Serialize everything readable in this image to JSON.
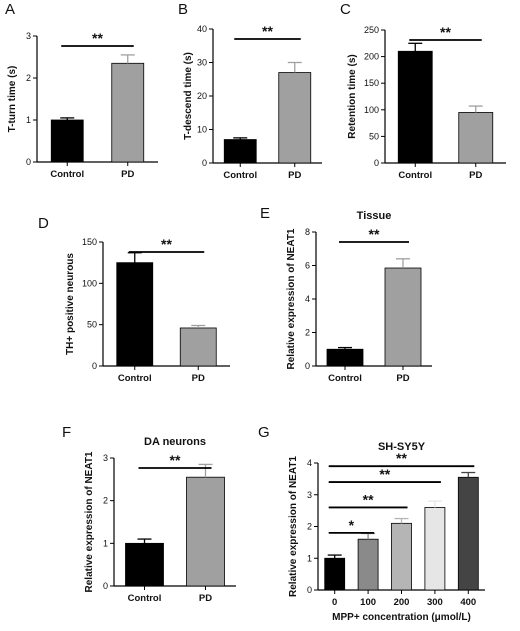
{
  "chart_data": [
    {
      "panel": "A",
      "type": "bar",
      "title": "",
      "ylabel": "T-turn time (s)",
      "xlabel": "",
      "categories": [
        "Control",
        "PD"
      ],
      "values": [
        1.0,
        2.35
      ],
      "errors": [
        0.05,
        0.2
      ],
      "bar_colors": [
        "#000000",
        "#a0a0a0"
      ],
      "ylim": [
        0,
        3
      ],
      "yticks": [
        "0",
        "1",
        "2",
        "3"
      ],
      "significance": [
        {
          "from": 0,
          "to": 1,
          "label": "**"
        }
      ]
    },
    {
      "panel": "B",
      "type": "bar",
      "title": "",
      "ylabel": "T-descend time (s)",
      "xlabel": "",
      "categories": [
        "Control",
        "PD"
      ],
      "values": [
        7.0,
        27.0
      ],
      "errors": [
        0.5,
        3.0
      ],
      "bar_colors": [
        "#000000",
        "#a0a0a0"
      ],
      "ylim": [
        0,
        40
      ],
      "yticks": [
        "0",
        "10",
        "20",
        "30",
        "40"
      ],
      "significance": [
        {
          "from": 0,
          "to": 1,
          "label": "**"
        }
      ]
    },
    {
      "panel": "C",
      "type": "bar",
      "title": "",
      "ylabel": "Retention time (s)",
      "xlabel": "",
      "categories": [
        "Control",
        "PD"
      ],
      "values": [
        210,
        95
      ],
      "errors": [
        15,
        12
      ],
      "bar_colors": [
        "#000000",
        "#a0a0a0"
      ],
      "ylim": [
        0,
        250
      ],
      "yticks": [
        "0",
        "50",
        "100",
        "150",
        "200",
        "250"
      ],
      "significance": [
        {
          "from": 0,
          "to": 1,
          "label": "**"
        }
      ]
    },
    {
      "panel": "D",
      "type": "bar",
      "title": "",
      "ylabel": "TH+ positive neurous",
      "xlabel": "",
      "categories": [
        "Control",
        "PD"
      ],
      "values": [
        125,
        46
      ],
      "errors": [
        12,
        3
      ],
      "bar_colors": [
        "#000000",
        "#a0a0a0"
      ],
      "ylim": [
        0,
        150
      ],
      "yticks": [
        "0",
        "50",
        "100",
        "150"
      ],
      "significance": [
        {
          "from": 0,
          "to": 1,
          "label": "**"
        }
      ]
    },
    {
      "panel": "E",
      "type": "bar",
      "title": "Tissue",
      "ylabel": "Relative expression of NEAT1",
      "xlabel": "",
      "categories": [
        "Control",
        "PD"
      ],
      "values": [
        1.0,
        5.85
      ],
      "errors": [
        0.1,
        0.55
      ],
      "bar_colors": [
        "#000000",
        "#a0a0a0"
      ],
      "ylim": [
        0,
        8
      ],
      "yticks": [
        "0",
        "2",
        "4",
        "6",
        "8"
      ],
      "significance": [
        {
          "from": 0,
          "to": 1,
          "label": "**"
        }
      ]
    },
    {
      "panel": "F",
      "type": "bar",
      "title": "DA neurons",
      "ylabel": "Relative expression of NEAT1",
      "xlabel": "",
      "categories": [
        "Control",
        "PD"
      ],
      "values": [
        1.0,
        2.55
      ],
      "errors": [
        0.1,
        0.3
      ],
      "bar_colors": [
        "#000000",
        "#a0a0a0"
      ],
      "ylim": [
        0,
        3
      ],
      "yticks": [
        "0",
        "1",
        "2",
        "3"
      ],
      "significance": [
        {
          "from": 0,
          "to": 1,
          "label": "**"
        }
      ]
    },
    {
      "panel": "G",
      "type": "bar",
      "title": "SH-SY5Y",
      "ylabel": "Relative expression of NEAT1",
      "xlabel": "MPP+ concentration (μmol/L)",
      "categories": [
        "0",
        "100",
        "200",
        "300",
        "400"
      ],
      "values": [
        1.0,
        1.6,
        2.1,
        2.6,
        3.55
      ],
      "errors": [
        0.1,
        0.18,
        0.15,
        0.2,
        0.15
      ],
      "bar_colors": [
        "#000000",
        "#8a8a8a",
        "#b5b5b5",
        "#e6e6e6",
        "#444444"
      ],
      "ylim": [
        0,
        4
      ],
      "yticks": [
        "0",
        "1",
        "2",
        "3",
        "4"
      ],
      "significance": [
        {
          "from": 0,
          "to": 1,
          "label": "*"
        },
        {
          "from": 0,
          "to": 2,
          "label": "**"
        },
        {
          "from": 0,
          "to": 3,
          "label": "**"
        },
        {
          "from": 0,
          "to": 4,
          "label": "**"
        }
      ]
    }
  ]
}
